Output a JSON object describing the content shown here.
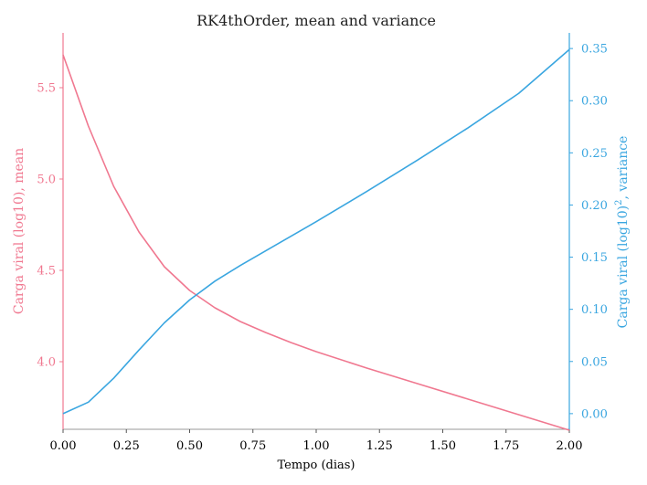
{
  "chart_data": {
    "type": "line",
    "title": "RK4thOrder, mean and variance",
    "xlabel": "Tempo (dias)",
    "ylabel_left": "Carga viral (log10), mean",
    "ylabel_right_base": "Carga viral (log10)",
    "ylabel_right_sup": "2",
    "ylabel_right_tail": ", variance",
    "xlim": [
      0.0,
      2.0
    ],
    "ylim_left": [
      3.63,
      5.8
    ],
    "ylim_right": [
      -0.015,
      0.365
    ],
    "x_ticks": [
      "0.00",
      "0.25",
      "0.50",
      "0.75",
      "1.00",
      "1.25",
      "1.50",
      "1.75",
      "2.00"
    ],
    "y_left_ticks": [
      "4.0",
      "4.5",
      "5.0",
      "5.5"
    ],
    "y_right_ticks": [
      "0.00",
      "0.05",
      "0.10",
      "0.15",
      "0.20",
      "0.25",
      "0.30",
      "0.35"
    ],
    "series": [
      {
        "name": "mean",
        "axis": "left",
        "color": "#f07890",
        "x": [
          0.0,
          0.1,
          0.2,
          0.3,
          0.4,
          0.5,
          0.6,
          0.7,
          0.8,
          0.9,
          1.0,
          1.2,
          1.4,
          1.6,
          1.8,
          2.0
        ],
        "values": [
          5.68,
          5.29,
          4.96,
          4.71,
          4.52,
          4.39,
          4.295,
          4.22,
          4.16,
          4.105,
          4.055,
          3.965,
          3.88,
          3.795,
          3.71,
          3.625
        ]
      },
      {
        "name": "variance",
        "axis": "right",
        "color": "#3aa6e0",
        "x": [
          0.0,
          0.1,
          0.2,
          0.3,
          0.4,
          0.5,
          0.6,
          0.7,
          0.8,
          0.9,
          1.0,
          1.2,
          1.4,
          1.6,
          1.8,
          2.0
        ],
        "values": [
          0.0,
          0.011,
          0.034,
          0.061,
          0.087,
          0.109,
          0.127,
          0.142,
          0.156,
          0.17,
          0.184,
          0.213,
          0.243,
          0.274,
          0.307,
          0.349
        ]
      }
    ]
  }
}
